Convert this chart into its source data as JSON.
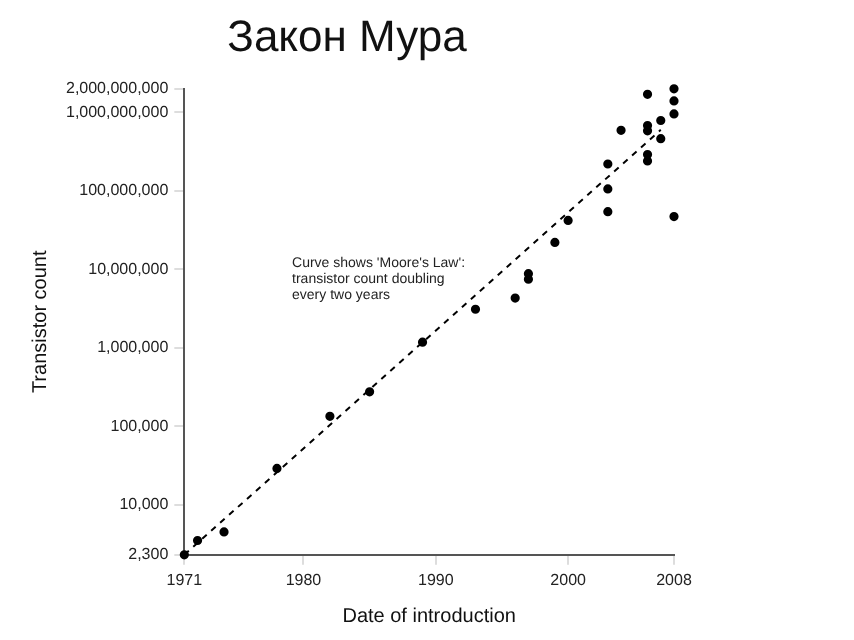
{
  "chart_data": {
    "type": "scatter",
    "title": "Закон Мура",
    "xlabel": "Date of introduction",
    "ylabel": "Transistor count",
    "annotations": [
      "Curve shows 'Moore's Law':",
      "transistor count doubling",
      "every two years"
    ],
    "xlim": [
      1971,
      2008
    ],
    "xticks": [
      1971,
      1980,
      1990,
      2000,
      2008
    ],
    "ylim": [
      2300,
      2000000000
    ],
    "yticks": [
      {
        "value": 2300,
        "label": "2,300"
      },
      {
        "value": 10000,
        "label": "10,000"
      },
      {
        "value": 100000,
        "label": "100,000"
      },
      {
        "value": 1000000,
        "label": "1,000,000"
      },
      {
        "value": 10000000,
        "label": "10,000,000"
      },
      {
        "value": 100000000,
        "label": "100,000,000"
      },
      {
        "value": 1000000000,
        "label": "1,000,000,000"
      },
      {
        "value": 2000000000,
        "label": "2,000,000,000"
      }
    ],
    "log": "y",
    "grid": false,
    "legend": false,
    "series": [
      {
        "type": "scatter",
        "color": "#000000",
        "marker": "circle",
        "x": [
          1971,
          1972,
          1974,
          1978,
          1982,
          1985,
          1989,
          1993,
          1996,
          1997,
          1997,
          1999,
          2000,
          2003,
          2003,
          2003,
          2004,
          2006,
          2006,
          2006,
          2006,
          2006,
          2007,
          2007,
          2008,
          2008,
          2008,
          2008
        ],
        "values": [
          2300,
          3500,
          4500,
          29000,
          134000,
          275000,
          1180000,
          3100000,
          4300000,
          7500000,
          8800000,
          22000000,
          42000000,
          54300000,
          105900000,
          220000000,
          592000000,
          582000000,
          291000000,
          241000000,
          681000000,
          1700000000,
          463000000,
          789000000,
          2000000000,
          1400000000,
          956000000,
          47000000
        ]
      },
      {
        "type": "line",
        "color": "#000000",
        "marker": "none",
        "line_style": "dashed",
        "x": [
          1971,
          2007
        ],
        "values": [
          2300,
          600000000
        ]
      }
    ]
  }
}
